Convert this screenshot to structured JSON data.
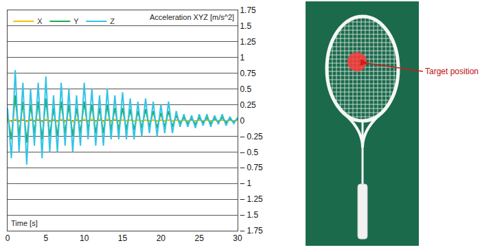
{
  "chart_data": {
    "type": "line",
    "y_label": "Acceleration XYZ [m/s^2]",
    "x_label": "Time [s]",
    "x": [
      0,
      0.5,
      1,
      1.5,
      2,
      2.5,
      3,
      3.5,
      4,
      4.5,
      5,
      5.5,
      6,
      6.5,
      7,
      7.5,
      8,
      8.5,
      9,
      9.5,
      10,
      10.5,
      11,
      11.5,
      12,
      12.5,
      13,
      13.5,
      14,
      14.5,
      15,
      15.5,
      16,
      16.5,
      17,
      17.5,
      18,
      18.5,
      19,
      19.5,
      20,
      20.5,
      21,
      21.5,
      22,
      22.5,
      23,
      23.5,
      24,
      24.5,
      25,
      25.5,
      26,
      26.5,
      27,
      27.5,
      28,
      28.5,
      29,
      29.5,
      30
    ],
    "series": [
      {
        "name": "X",
        "color": "#f2c400",
        "values": [
          0.02,
          -0.02,
          0.02,
          -0.02,
          0.02,
          -0.02,
          0.02,
          -0.02,
          0.02,
          -0.02,
          0.02,
          -0.02,
          0.02,
          -0.02,
          0.02,
          -0.02,
          0.02,
          -0.02,
          0.02,
          -0.02,
          0.02,
          -0.02,
          0.02,
          -0.02,
          0.02,
          -0.02,
          0.02,
          -0.02,
          0.02,
          -0.02,
          0.01,
          -0.01,
          0.01,
          -0.01,
          0.01,
          -0.01,
          0.01,
          -0.01,
          0.01,
          -0.01,
          0.01,
          -0.01,
          0.01,
          -0.01,
          0.01,
          -0.01,
          0.01,
          -0.01,
          0.01,
          -0.01,
          0.01,
          -0.01,
          0.01,
          -0.01,
          0.01,
          -0.01,
          0.01,
          -0.01,
          0.01,
          -0.01,
          0.01
        ]
      },
      {
        "name": "Y",
        "color": "#1fa84f",
        "values": [
          0.1,
          -0.3,
          0.4,
          -0.25,
          0.3,
          -0.35,
          0.25,
          -0.2,
          0.3,
          -0.3,
          0.35,
          -0.25,
          0.2,
          -0.25,
          0.3,
          -0.2,
          0.25,
          -0.25,
          0.2,
          -0.2,
          0.3,
          -0.15,
          0.25,
          -0.2,
          0.2,
          -0.2,
          0.25,
          -0.15,
          0.2,
          -0.15,
          0.2,
          -0.15,
          0.18,
          -0.15,
          0.15,
          -0.12,
          0.18,
          -0.1,
          0.15,
          -0.12,
          0.12,
          -0.1,
          0.15,
          -0.1,
          0.08,
          -0.05,
          0.05,
          -0.05,
          0.04,
          -0.06,
          0.05,
          -0.04,
          0.05,
          -0.05,
          0.04,
          -0.03,
          0.05,
          -0.04,
          0.03,
          -0.03,
          0.03
        ]
      },
      {
        "name": "Z",
        "color": "#33c4e6",
        "values": [
          0.2,
          -0.6,
          0.8,
          -0.5,
          0.6,
          -0.7,
          0.5,
          -0.4,
          0.6,
          -0.6,
          0.7,
          -0.5,
          0.4,
          -0.5,
          0.6,
          -0.4,
          0.5,
          -0.5,
          0.4,
          -0.4,
          0.6,
          -0.3,
          0.5,
          -0.4,
          0.4,
          -0.4,
          0.5,
          -0.3,
          0.4,
          -0.3,
          0.45,
          -0.3,
          0.35,
          -0.3,
          0.3,
          -0.25,
          0.35,
          -0.2,
          0.3,
          -0.25,
          0.25,
          -0.2,
          0.3,
          -0.2,
          0.15,
          -0.1,
          0.1,
          -0.1,
          0.08,
          -0.12,
          0.1,
          -0.08,
          0.1,
          -0.1,
          0.08,
          -0.06,
          0.1,
          -0.08,
          0.06,
          -0.05,
          0.05
        ]
      }
    ],
    "xlim": [
      0,
      30
    ],
    "xticks": [
      0,
      5,
      10,
      15,
      20,
      25,
      30
    ],
    "ylim": [
      -1.75,
      1.75
    ],
    "yticks": [
      {
        "value": -1.75,
        "label": "– 1.75"
      },
      {
        "value": -1.5,
        "label": "– 1.5"
      },
      {
        "value": -1.25,
        "label": "– 1.25"
      },
      {
        "value": -1,
        "label": "– 1"
      },
      {
        "value": -0.75,
        "label": "– 0.75"
      },
      {
        "value": -0.5,
        "label": "– 0.5"
      },
      {
        "value": -0.25,
        "label": "– 0.25"
      },
      0,
      0.25,
      0.5,
      0.75,
      1,
      1.25,
      1.5,
      1.75
    ],
    "grid": true,
    "legend": "top left"
  },
  "photo": {
    "annotation": "Target position"
  }
}
